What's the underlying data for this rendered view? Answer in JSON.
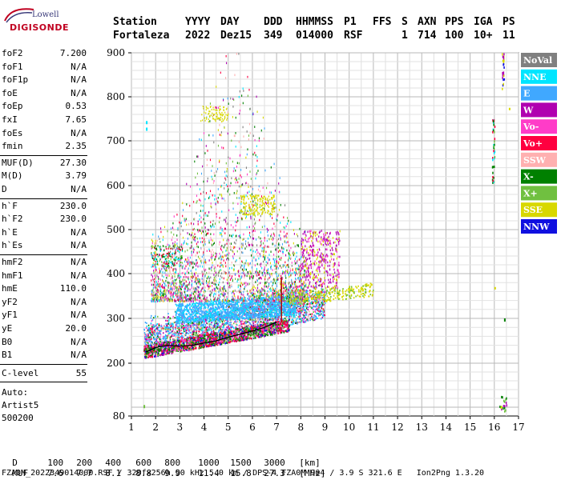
{
  "header": {
    "row1": [
      "Station",
      "YYYY",
      "DAY",
      "DDD",
      "HHMMSS",
      "P1",
      "FFS",
      "S",
      "AXN",
      "PPS",
      "IGA",
      "PS"
    ],
    "row2": [
      "Fortaleza",
      "2022",
      "Dez15",
      "349",
      "014000",
      "RSF",
      "",
      "1",
      "714",
      "100",
      "10+",
      "11"
    ]
  },
  "logo": {
    "top": "Lowell",
    "bottom": "DIGISONDE"
  },
  "params_a": [
    {
      "name": "foF2",
      "value": "7.200"
    },
    {
      "name": "foF1",
      "value": "N/A"
    },
    {
      "name": "foF1p",
      "value": "N/A"
    },
    {
      "name": "foE",
      "value": "N/A"
    },
    {
      "name": "foEp",
      "value": "0.53"
    },
    {
      "name": "fxI",
      "value": "7.65"
    },
    {
      "name": "foEs",
      "value": "N/A"
    },
    {
      "name": "fmin",
      "value": "2.35"
    }
  ],
  "params_b": [
    {
      "name": "MUF(D)",
      "value": "27.30"
    },
    {
      "name": "M(D)",
      "value": "3.79"
    },
    {
      "name": "D",
      "value": "N/A"
    }
  ],
  "params_c": [
    {
      "name": "h`F",
      "value": "230.0"
    },
    {
      "name": "h`F2",
      "value": "230.0"
    },
    {
      "name": "h`E",
      "value": "N/A"
    },
    {
      "name": "h`Es",
      "value": "N/A"
    }
  ],
  "params_d": [
    {
      "name": "hmF2",
      "value": "N/A"
    },
    {
      "name": "hmF1",
      "value": "N/A"
    },
    {
      "name": "hmE",
      "value": "110.0"
    },
    {
      "name": "yF2",
      "value": "N/A"
    },
    {
      "name": "yF1",
      "value": "N/A"
    },
    {
      "name": "yE",
      "value": "20.0"
    },
    {
      "name": "B0",
      "value": "N/A"
    },
    {
      "name": "B1",
      "value": "N/A"
    }
  ],
  "clevel": {
    "name": "C-level",
    "value": "55"
  },
  "auto": {
    "line1": "Auto:",
    "line2": "Artist5",
    "line3": "500200"
  },
  "legend": [
    {
      "label": "NoVal",
      "color": "#808080"
    },
    {
      "label": "NNE",
      "color": "#00e5ff"
    },
    {
      "label": "E",
      "color": "#40a8ff"
    },
    {
      "label": "W",
      "color": "#b000b0"
    },
    {
      "label": "Vo-",
      "color": "#ff3cc8"
    },
    {
      "label": "Vo+",
      "color": "#ff0040"
    },
    {
      "label": "SSW",
      "color": "#ffb0b0"
    },
    {
      "label": "X-",
      "color": "#008000"
    },
    {
      "label": "X+",
      "color": "#70c040"
    },
    {
      "label": "SSE",
      "color": "#d8d800"
    },
    {
      "label": "NNW",
      "color": "#1010e0"
    }
  ],
  "chart_data": {
    "type": "scatter",
    "x_ticks": [
      "1",
      "2",
      "3",
      "4",
      "5",
      "6",
      "7",
      "8",
      "9",
      "10",
      "11",
      "12",
      "13",
      "14",
      "15",
      "16",
      "17"
    ],
    "y_ticks": [
      "900",
      "800",
      "700",
      "600",
      "500",
      "400",
      "300",
      "200",
      "80"
    ],
    "trace": {
      "x": [
        1.6,
        2.0,
        2.5,
        3.0,
        3.5,
        4.0,
        4.5,
        5.0,
        5.5,
        6.0,
        6.5,
        7.0
      ],
      "y": [
        225,
        235,
        240,
        238,
        240,
        245,
        250,
        258,
        265,
        272,
        280,
        292
      ]
    }
  },
  "footer": {
    "d_label": "D",
    "d_values": [
      "100",
      "200",
      "400",
      "600",
      "800",
      "1000",
      "1500",
      "3000",
      "[km]"
    ],
    "muf_label": "MUF",
    "muf_values": [
      "7.6",
      "7.7",
      "8.1",
      "8.8",
      "9.9",
      "11.4",
      "15.8",
      "27.3",
      "[MHz]"
    ],
    "file_line": "FZA0M_2022349014000.RSF / 320fx256h 50 kHz 5.0 km / DPS-4 FZA0M 904 / 3.9 S 321.6 E   Ion2Png 1.3.20"
  }
}
